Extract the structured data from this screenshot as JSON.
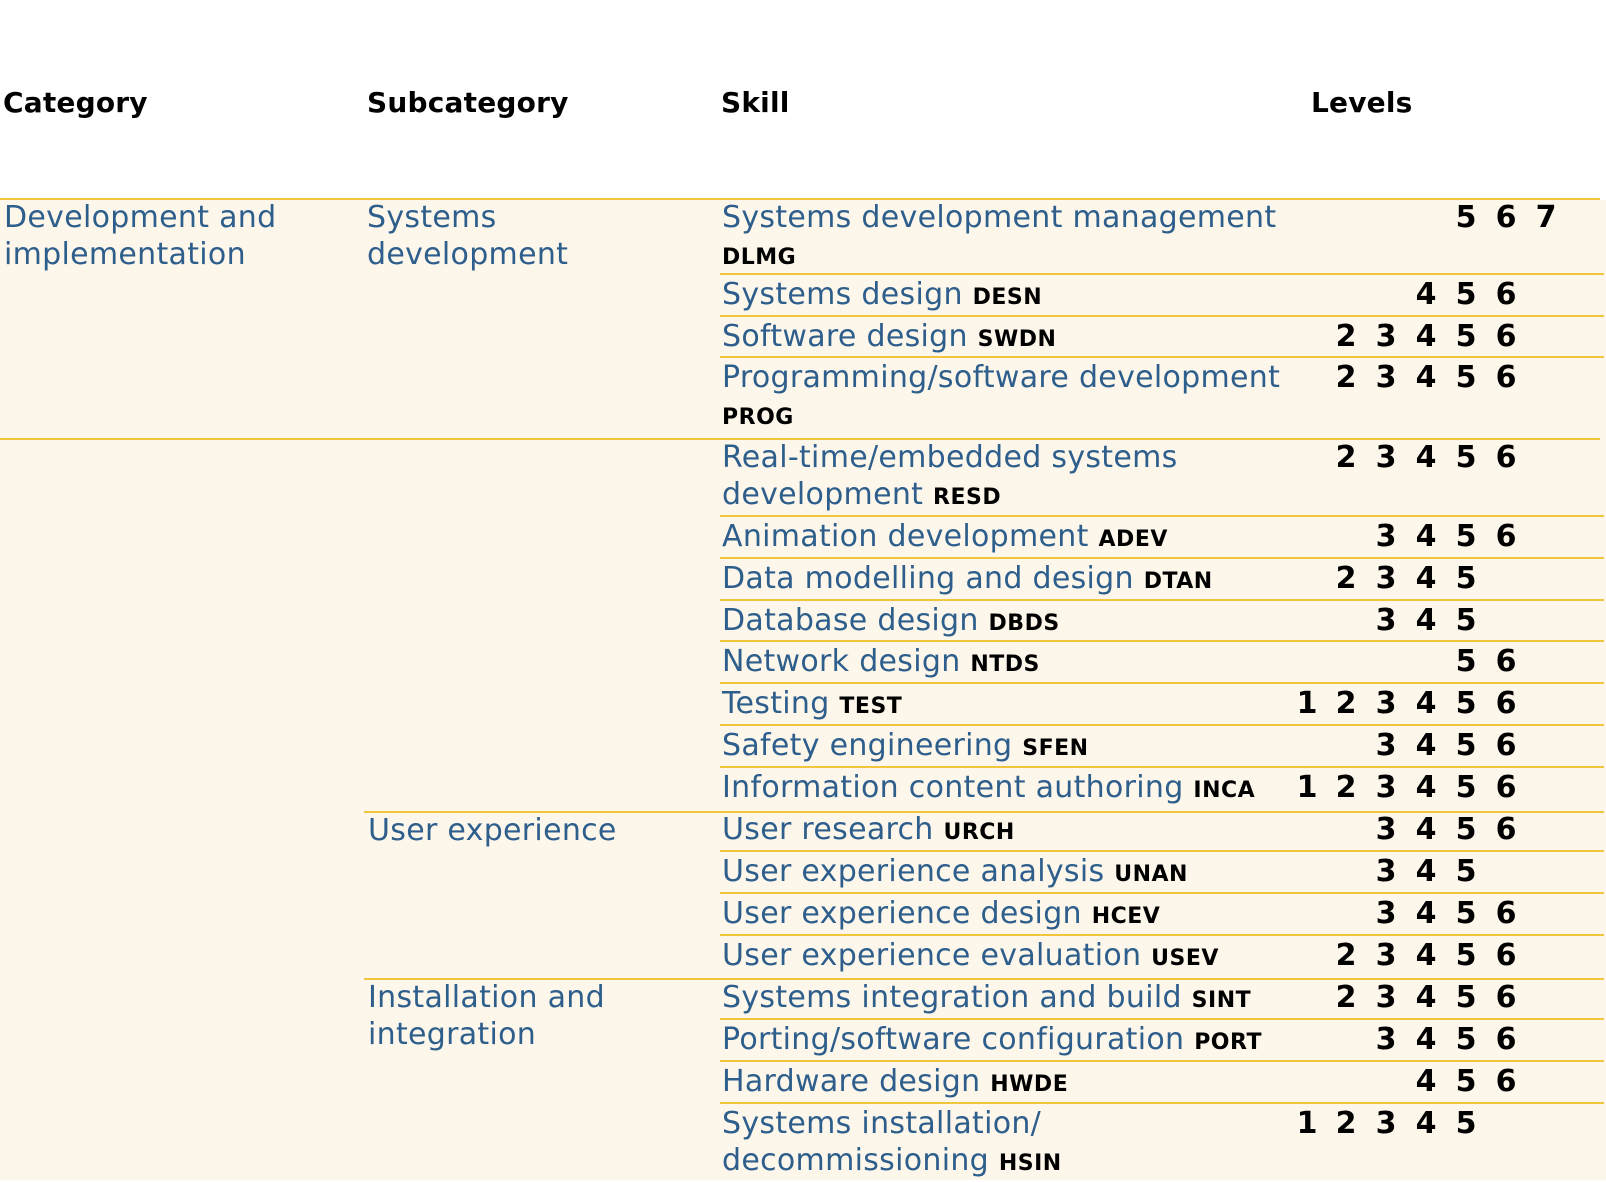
{
  "headers": {
    "category": "Category",
    "subcategory": "Subcategory",
    "skill": "Skill",
    "levels": "Levels"
  },
  "colors": {
    "accent_rule": "#f2c53d",
    "band_background": "#fdf6ea",
    "link_text": "#2d5e8c",
    "code_text": "#000000"
  },
  "category": {
    "name_line1": "Development and",
    "name_line2": "implementation"
  },
  "subcategories": [
    {
      "line1": "Systems",
      "line2": "development"
    },
    {
      "line1": "User experience",
      "line2": ""
    },
    {
      "line1": "Installation and",
      "line2": "integration"
    }
  ],
  "skills": [
    {
      "name": "Systems development management",
      "code": "DLMG",
      "levels": [
        5,
        6,
        7
      ]
    },
    {
      "name": "Systems design",
      "code": "DESN",
      "levels": [
        4,
        5,
        6
      ]
    },
    {
      "name": "Software design",
      "code": "SWDN",
      "levels": [
        2,
        3,
        4,
        5,
        6
      ]
    },
    {
      "name": "Programming/software development",
      "code": "PROG",
      "levels": [
        2,
        3,
        4,
        5,
        6
      ]
    },
    {
      "name": "Real-time/embedded systems development",
      "code": "RESD",
      "levels": [
        2,
        3,
        4,
        5,
        6
      ]
    },
    {
      "name": "Animation development",
      "code": "ADEV",
      "levels": [
        3,
        4,
        5,
        6
      ]
    },
    {
      "name": "Data modelling and design",
      "code": "DTAN",
      "levels": [
        2,
        3,
        4,
        5
      ]
    },
    {
      "name": "Database design",
      "code": "DBDS",
      "levels": [
        3,
        4,
        5
      ]
    },
    {
      "name": "Network design",
      "code": "NTDS",
      "levels": [
        5,
        6
      ]
    },
    {
      "name": "Testing",
      "code": "TEST",
      "levels": [
        1,
        2,
        3,
        4,
        5,
        6
      ]
    },
    {
      "name": "Safety engineering",
      "code": "SFEN",
      "levels": [
        3,
        4,
        5,
        6
      ]
    },
    {
      "name": "Information content authoring",
      "code": "INCA",
      "levels": [
        1,
        2,
        3,
        4,
        5,
        6
      ]
    },
    {
      "name": "User research",
      "code": "URCH",
      "levels": [
        3,
        4,
        5,
        6
      ]
    },
    {
      "name": "User experience analysis",
      "code": "UNAN",
      "levels": [
        3,
        4,
        5
      ]
    },
    {
      "name": "User experience design",
      "code": "HCEV",
      "levels": [
        3,
        4,
        5,
        6
      ]
    },
    {
      "name": "User experience evaluation",
      "code": "USEV",
      "levels": [
        2,
        3,
        4,
        5,
        6
      ]
    },
    {
      "name": "Systems integration and build",
      "code": "SINT",
      "levels": [
        2,
        3,
        4,
        5,
        6
      ]
    },
    {
      "name": "Porting/software configuration",
      "code": "PORT",
      "levels": [
        3,
        4,
        5,
        6
      ]
    },
    {
      "name": "Hardware design",
      "code": "HWDE",
      "levels": [
        4,
        5,
        6
      ]
    },
    {
      "name": "Systems installation/ decommissioning",
      "code": "HSIN",
      "levels": [
        1,
        2,
        3,
        4,
        5
      ]
    }
  ]
}
